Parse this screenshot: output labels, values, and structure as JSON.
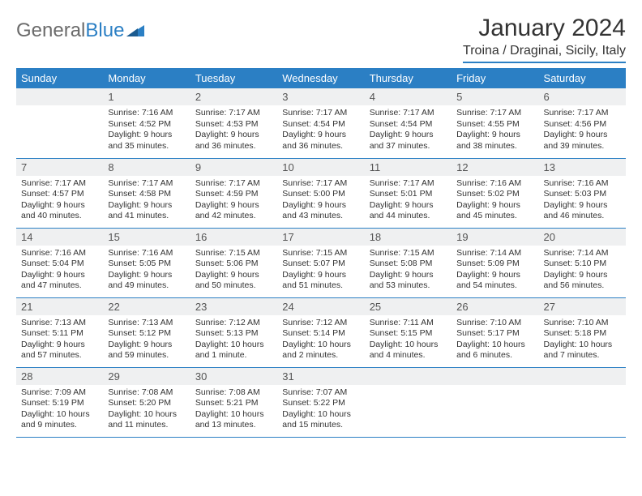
{
  "logo": {
    "text1": "General",
    "text2": "Blue"
  },
  "header": {
    "month": "January 2024",
    "location": "Troina / Draginai, Sicily, Italy"
  },
  "dayHeaders": [
    "Sunday",
    "Monday",
    "Tuesday",
    "Wednesday",
    "Thursday",
    "Friday",
    "Saturday"
  ],
  "colors": {
    "accent": "#2b7fc4",
    "daybg": "#eff0f1",
    "text": "#333333",
    "logoGray": "#6b6b6b"
  },
  "startWeekday": 1,
  "days": [
    {
      "n": "1",
      "sr": "Sunrise: 7:16 AM",
      "ss": "Sunset: 4:52 PM",
      "dl1": "Daylight: 9 hours",
      "dl2": "and 35 minutes."
    },
    {
      "n": "2",
      "sr": "Sunrise: 7:17 AM",
      "ss": "Sunset: 4:53 PM",
      "dl1": "Daylight: 9 hours",
      "dl2": "and 36 minutes."
    },
    {
      "n": "3",
      "sr": "Sunrise: 7:17 AM",
      "ss": "Sunset: 4:54 PM",
      "dl1": "Daylight: 9 hours",
      "dl2": "and 36 minutes."
    },
    {
      "n": "4",
      "sr": "Sunrise: 7:17 AM",
      "ss": "Sunset: 4:54 PM",
      "dl1": "Daylight: 9 hours",
      "dl2": "and 37 minutes."
    },
    {
      "n": "5",
      "sr": "Sunrise: 7:17 AM",
      "ss": "Sunset: 4:55 PM",
      "dl1": "Daylight: 9 hours",
      "dl2": "and 38 minutes."
    },
    {
      "n": "6",
      "sr": "Sunrise: 7:17 AM",
      "ss": "Sunset: 4:56 PM",
      "dl1": "Daylight: 9 hours",
      "dl2": "and 39 minutes."
    },
    {
      "n": "7",
      "sr": "Sunrise: 7:17 AM",
      "ss": "Sunset: 4:57 PM",
      "dl1": "Daylight: 9 hours",
      "dl2": "and 40 minutes."
    },
    {
      "n": "8",
      "sr": "Sunrise: 7:17 AM",
      "ss": "Sunset: 4:58 PM",
      "dl1": "Daylight: 9 hours",
      "dl2": "and 41 minutes."
    },
    {
      "n": "9",
      "sr": "Sunrise: 7:17 AM",
      "ss": "Sunset: 4:59 PM",
      "dl1": "Daylight: 9 hours",
      "dl2": "and 42 minutes."
    },
    {
      "n": "10",
      "sr": "Sunrise: 7:17 AM",
      "ss": "Sunset: 5:00 PM",
      "dl1": "Daylight: 9 hours",
      "dl2": "and 43 minutes."
    },
    {
      "n": "11",
      "sr": "Sunrise: 7:17 AM",
      "ss": "Sunset: 5:01 PM",
      "dl1": "Daylight: 9 hours",
      "dl2": "and 44 minutes."
    },
    {
      "n": "12",
      "sr": "Sunrise: 7:16 AM",
      "ss": "Sunset: 5:02 PM",
      "dl1": "Daylight: 9 hours",
      "dl2": "and 45 minutes."
    },
    {
      "n": "13",
      "sr": "Sunrise: 7:16 AM",
      "ss": "Sunset: 5:03 PM",
      "dl1": "Daylight: 9 hours",
      "dl2": "and 46 minutes."
    },
    {
      "n": "14",
      "sr": "Sunrise: 7:16 AM",
      "ss": "Sunset: 5:04 PM",
      "dl1": "Daylight: 9 hours",
      "dl2": "and 47 minutes."
    },
    {
      "n": "15",
      "sr": "Sunrise: 7:16 AM",
      "ss": "Sunset: 5:05 PM",
      "dl1": "Daylight: 9 hours",
      "dl2": "and 49 minutes."
    },
    {
      "n": "16",
      "sr": "Sunrise: 7:15 AM",
      "ss": "Sunset: 5:06 PM",
      "dl1": "Daylight: 9 hours",
      "dl2": "and 50 minutes."
    },
    {
      "n": "17",
      "sr": "Sunrise: 7:15 AM",
      "ss": "Sunset: 5:07 PM",
      "dl1": "Daylight: 9 hours",
      "dl2": "and 51 minutes."
    },
    {
      "n": "18",
      "sr": "Sunrise: 7:15 AM",
      "ss": "Sunset: 5:08 PM",
      "dl1": "Daylight: 9 hours",
      "dl2": "and 53 minutes."
    },
    {
      "n": "19",
      "sr": "Sunrise: 7:14 AM",
      "ss": "Sunset: 5:09 PM",
      "dl1": "Daylight: 9 hours",
      "dl2": "and 54 minutes."
    },
    {
      "n": "20",
      "sr": "Sunrise: 7:14 AM",
      "ss": "Sunset: 5:10 PM",
      "dl1": "Daylight: 9 hours",
      "dl2": "and 56 minutes."
    },
    {
      "n": "21",
      "sr": "Sunrise: 7:13 AM",
      "ss": "Sunset: 5:11 PM",
      "dl1": "Daylight: 9 hours",
      "dl2": "and 57 minutes."
    },
    {
      "n": "22",
      "sr": "Sunrise: 7:13 AM",
      "ss": "Sunset: 5:12 PM",
      "dl1": "Daylight: 9 hours",
      "dl2": "and 59 minutes."
    },
    {
      "n": "23",
      "sr": "Sunrise: 7:12 AM",
      "ss": "Sunset: 5:13 PM",
      "dl1": "Daylight: 10 hours",
      "dl2": "and 1 minute."
    },
    {
      "n": "24",
      "sr": "Sunrise: 7:12 AM",
      "ss": "Sunset: 5:14 PM",
      "dl1": "Daylight: 10 hours",
      "dl2": "and 2 minutes."
    },
    {
      "n": "25",
      "sr": "Sunrise: 7:11 AM",
      "ss": "Sunset: 5:15 PM",
      "dl1": "Daylight: 10 hours",
      "dl2": "and 4 minutes."
    },
    {
      "n": "26",
      "sr": "Sunrise: 7:10 AM",
      "ss": "Sunset: 5:17 PM",
      "dl1": "Daylight: 10 hours",
      "dl2": "and 6 minutes."
    },
    {
      "n": "27",
      "sr": "Sunrise: 7:10 AM",
      "ss": "Sunset: 5:18 PM",
      "dl1": "Daylight: 10 hours",
      "dl2": "and 7 minutes."
    },
    {
      "n": "28",
      "sr": "Sunrise: 7:09 AM",
      "ss": "Sunset: 5:19 PM",
      "dl1": "Daylight: 10 hours",
      "dl2": "and 9 minutes."
    },
    {
      "n": "29",
      "sr": "Sunrise: 7:08 AM",
      "ss": "Sunset: 5:20 PM",
      "dl1": "Daylight: 10 hours",
      "dl2": "and 11 minutes."
    },
    {
      "n": "30",
      "sr": "Sunrise: 7:08 AM",
      "ss": "Sunset: 5:21 PM",
      "dl1": "Daylight: 10 hours",
      "dl2": "and 13 minutes."
    },
    {
      "n": "31",
      "sr": "Sunrise: 7:07 AM",
      "ss": "Sunset: 5:22 PM",
      "dl1": "Daylight: 10 hours",
      "dl2": "and 15 minutes."
    }
  ]
}
